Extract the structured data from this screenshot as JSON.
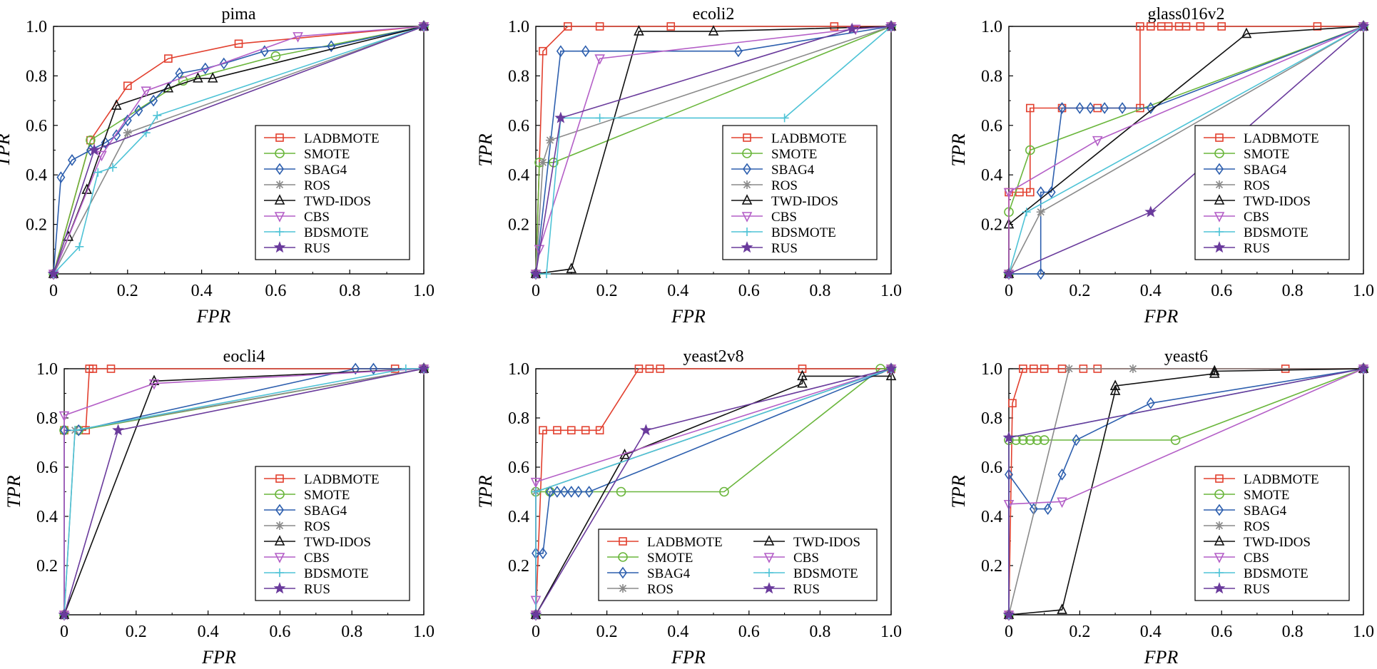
{
  "figure_caption_free": true,
  "colors": {
    "LADBMOTE": "#e2402f",
    "SMOTE": "#6ab63c",
    "SBAG4": "#2d5fae",
    "ROS": "#8a8a8a",
    "TWD-IDOS": "#111111",
    "CBS": "#b45fc7",
    "BDSMOTE": "#4ec3d6",
    "RUS": "#6a3b9c"
  },
  "chart_data": [
    {
      "type": "line",
      "title": "pima",
      "xlabel": "FPR",
      "ylabel": "TPR",
      "xlim": [
        0,
        1
      ],
      "ylim": [
        0,
        1
      ],
      "x_ticks": [
        "0",
        "0.2",
        "0.4",
        "0.6",
        "0.8",
        "1.0"
      ],
      "y_ticks": [
        "0.2",
        "0.4",
        "0.6",
        "0.8",
        "1.0"
      ],
      "legend_position": "bottom-right",
      "legend_columns": 1,
      "series": [
        {
          "name": "LADBMOTE",
          "marker": "square",
          "x": [
            0,
            0.1,
            0.2,
            0.31,
            0.5,
            1.0
          ],
          "y": [
            0,
            0.54,
            0.76,
            0.87,
            0.93,
            1.0
          ]
        },
        {
          "name": "SMOTE",
          "marker": "circle",
          "x": [
            0,
            0.1,
            0.35,
            0.6,
            1.0
          ],
          "y": [
            0,
            0.54,
            0.78,
            0.88,
            1.0
          ]
        },
        {
          "name": "SBAG4",
          "marker": "diamond",
          "x": [
            0,
            0.02,
            0.05,
            0.1,
            0.14,
            0.17,
            0.2,
            0.23,
            0.27,
            0.34,
            0.41,
            0.46,
            0.57,
            0.75,
            1.0
          ],
          "y": [
            0,
            0.39,
            0.46,
            0.5,
            0.53,
            0.56,
            0.62,
            0.66,
            0.7,
            0.81,
            0.83,
            0.85,
            0.9,
            0.92,
            1.0
          ]
        },
        {
          "name": "ROS",
          "marker": "asterisk",
          "x": [
            0,
            0.2,
            1.0
          ],
          "y": [
            0,
            0.57,
            1.0
          ]
        },
        {
          "name": "TWD-IDOS",
          "marker": "triangle-up",
          "x": [
            0,
            0.04,
            0.09,
            0.17,
            0.31,
            0.39,
            0.43,
            1.0
          ],
          "y": [
            0,
            0.15,
            0.34,
            0.68,
            0.75,
            0.79,
            0.79,
            1.0
          ]
        },
        {
          "name": "CBS",
          "marker": "triangle-down",
          "x": [
            0,
            0.13,
            0.25,
            0.66,
            1.0
          ],
          "y": [
            0,
            0.48,
            0.74,
            0.96,
            1.0
          ]
        },
        {
          "name": "BDSMOTE",
          "marker": "plus",
          "x": [
            0,
            0.07,
            0.12,
            0.16,
            0.25,
            0.28,
            1.0
          ],
          "y": [
            0,
            0.11,
            0.41,
            0.43,
            0.57,
            0.64,
            1.0
          ]
        },
        {
          "name": "RUS",
          "marker": "star",
          "x": [
            0,
            0.11,
            1.0
          ],
          "y": [
            0,
            0.5,
            1.0
          ]
        }
      ]
    },
    {
      "type": "line",
      "title": "ecoli2",
      "xlabel": "FPR",
      "ylabel": "TPR",
      "xlim": [
        0,
        1
      ],
      "ylim": [
        0,
        1
      ],
      "x_ticks": [
        "0",
        "0.2",
        "0.4",
        "0.6",
        "0.8",
        "1.0"
      ],
      "y_ticks": [
        "0.2",
        "0.4",
        "0.6",
        "0.8",
        "1.0"
      ],
      "legend_position": "bottom-right",
      "legend_columns": 1,
      "series": [
        {
          "name": "LADBMOTE",
          "marker": "square",
          "x": [
            0,
            0.02,
            0.09,
            0.18,
            0.38,
            0.84,
            1.0
          ],
          "y": [
            0,
            0.9,
            1.0,
            1.0,
            1.0,
            1.0,
            1.0
          ]
        },
        {
          "name": "SMOTE",
          "marker": "circle",
          "x": [
            0,
            0.01,
            0.05,
            1.0
          ],
          "y": [
            0,
            0.45,
            0.45,
            1.0
          ]
        },
        {
          "name": "SBAG4",
          "marker": "diamond",
          "x": [
            0,
            0.07,
            0.14,
            0.57,
            1.0
          ],
          "y": [
            0,
            0.9,
            0.9,
            0.9,
            1.0
          ]
        },
        {
          "name": "ROS",
          "marker": "asterisk",
          "x": [
            0,
            0.02,
            0.04,
            1.0
          ],
          "y": [
            0,
            0.45,
            0.54,
            1.0
          ]
        },
        {
          "name": "TWD-IDOS",
          "marker": "triangle-up",
          "x": [
            0,
            0.1,
            0.29,
            0.5,
            1.0
          ],
          "y": [
            0,
            0.02,
            0.98,
            0.98,
            1.0
          ]
        },
        {
          "name": "CBS",
          "marker": "triangle-down",
          "x": [
            0,
            0.01,
            0.18,
            0.9,
            1.0
          ],
          "y": [
            0,
            0.1,
            0.87,
            0.99,
            1.0
          ]
        },
        {
          "name": "BDSMOTE",
          "marker": "plus",
          "x": [
            0,
            0.03,
            0.07,
            0.18,
            0.7,
            1.0
          ],
          "y": [
            0,
            0.0,
            0.63,
            0.63,
            0.63,
            1.0
          ]
        },
        {
          "name": "RUS",
          "marker": "star",
          "x": [
            0,
            0.07,
            0.89,
            1.0
          ],
          "y": [
            0,
            0.63,
            0.99,
            1.0
          ]
        }
      ]
    },
    {
      "type": "line",
      "title": "glass016v2",
      "xlabel": "FPR",
      "ylabel": "TPR",
      "xlim": [
        0,
        1
      ],
      "ylim": [
        0,
        1
      ],
      "x_ticks": [
        "0",
        "0.2",
        "0.4",
        "0.6",
        "0.8",
        "1.0"
      ],
      "y_ticks": [
        "0.2",
        "0.4",
        "0.6",
        "0.8",
        "1.0"
      ],
      "legend_position": "bottom-right",
      "legend_columns": 1,
      "series": [
        {
          "name": "LADBMOTE",
          "marker": "square",
          "x": [
            0,
            0.0,
            0.03,
            0.06,
            0.06,
            0.15,
            0.25,
            0.37,
            0.37,
            0.4,
            0.43,
            0.45,
            0.48,
            0.5,
            0.54,
            0.6,
            0.87,
            1.0
          ],
          "y": [
            0,
            0.33,
            0.33,
            0.33,
            0.67,
            0.67,
            0.67,
            0.67,
            1.0,
            1.0,
            1.0,
            1.0,
            1.0,
            1.0,
            1.0,
            1.0,
            1.0,
            1.0
          ]
        },
        {
          "name": "SMOTE",
          "marker": "circle",
          "x": [
            0,
            0.0,
            0.06,
            1.0
          ],
          "y": [
            0,
            0.25,
            0.5,
            1.0
          ]
        },
        {
          "name": "SBAG4",
          "marker": "diamond",
          "x": [
            0,
            0.09,
            0.09,
            0.12,
            0.15,
            0.2,
            0.23,
            0.27,
            0.32,
            0.4,
            1.0
          ],
          "y": [
            0,
            0.0,
            0.33,
            0.33,
            0.67,
            0.67,
            0.67,
            0.67,
            0.67,
            0.67,
            1.0
          ]
        },
        {
          "name": "ROS",
          "marker": "asterisk",
          "x": [
            0,
            0.09,
            1.0
          ],
          "y": [
            0,
            0.25,
            1.0
          ]
        },
        {
          "name": "TWD-IDOS",
          "marker": "triangle-up",
          "x": [
            0,
            0.0,
            0.67,
            1.0
          ],
          "y": [
            0,
            0.2,
            0.97,
            1.0
          ]
        },
        {
          "name": "CBS",
          "marker": "triangle-down",
          "x": [
            0,
            0.0,
            0.25,
            1.0
          ],
          "y": [
            0,
            0.33,
            0.54,
            1.0
          ]
        },
        {
          "name": "BDSMOTE",
          "marker": "plus",
          "x": [
            0,
            0.05,
            1.0
          ],
          "y": [
            0,
            0.25,
            1.0
          ]
        },
        {
          "name": "RUS",
          "marker": "star",
          "x": [
            0,
            0.4,
            1.0
          ],
          "y": [
            0,
            0.25,
            1.0
          ]
        }
      ]
    },
    {
      "type": "line",
      "title": "eocli4",
      "xlabel": "FPR",
      "ylabel": "TPR",
      "xlim": [
        0,
        1
      ],
      "ylim": [
        0,
        1
      ],
      "x_ticks": [
        "0",
        "0.2",
        "0.4",
        "0.6",
        "0.8",
        "1.0"
      ],
      "y_ticks": [
        "0.2",
        "0.4",
        "0.6",
        "0.8",
        "1.0"
      ],
      "legend_position": "bottom-right",
      "legend_columns": 1,
      "series": [
        {
          "name": "LADBMOTE",
          "marker": "square",
          "x": [
            0,
            0.0,
            0.06,
            0.07,
            0.08,
            0.13,
            0.92,
            1.0
          ],
          "y": [
            0,
            0.75,
            0.75,
            1.0,
            1.0,
            1.0,
            1.0,
            1.0
          ]
        },
        {
          "name": "SMOTE",
          "marker": "circle",
          "x": [
            0,
            0.0,
            0.04,
            1.0
          ],
          "y": [
            0,
            0.75,
            0.75,
            1.0
          ]
        },
        {
          "name": "SBAG4",
          "marker": "diamond",
          "x": [
            0,
            0.0,
            0.04,
            0.81,
            0.86,
            1.0
          ],
          "y": [
            0,
            0.75,
            0.75,
            1.0,
            1.0,
            1.0
          ]
        },
        {
          "name": "ROS",
          "marker": "asterisk",
          "x": [
            0,
            0.03,
            1.0
          ],
          "y": [
            0,
            0.75,
            1.0
          ]
        },
        {
          "name": "TWD-IDOS",
          "marker": "triangle-up",
          "x": [
            0,
            0.25,
            1.0
          ],
          "y": [
            0,
            0.95,
            1.0
          ]
        },
        {
          "name": "CBS",
          "marker": "triangle-down",
          "x": [
            0,
            0.0,
            0.25,
            1.0
          ],
          "y": [
            0,
            0.81,
            0.94,
            1.0
          ]
        },
        {
          "name": "BDSMOTE",
          "marker": "plus",
          "x": [
            0,
            0.03,
            0.95,
            1.0
          ],
          "y": [
            0,
            0.75,
            1.0,
            1.0
          ]
        },
        {
          "name": "RUS",
          "marker": "star",
          "x": [
            0,
            0.15,
            1.0
          ],
          "y": [
            0,
            0.75,
            1.0
          ]
        }
      ]
    },
    {
      "type": "line",
      "title": "yeast2v8",
      "xlabel": "FPR",
      "ylabel": "TPR",
      "xlim": [
        0,
        1
      ],
      "ylim": [
        0,
        1
      ],
      "x_ticks": [
        "0",
        "0.2",
        "0.4",
        "0.6",
        "0.8",
        "1.0"
      ],
      "y_ticks": [
        "0.2",
        "0.4",
        "0.6",
        "0.8",
        "1.0"
      ],
      "legend_position": "bottom-right",
      "legend_columns": 2,
      "series": [
        {
          "name": "LADBMOTE",
          "marker": "square",
          "x": [
            0,
            0.02,
            0.06,
            0.1,
            0.14,
            0.18,
            0.29,
            0.32,
            0.35,
            0.75,
            1.0
          ],
          "y": [
            0,
            0.75,
            0.75,
            0.75,
            0.75,
            0.75,
            1.0,
            1.0,
            1.0,
            1.0,
            1.0
          ]
        },
        {
          "name": "SMOTE",
          "marker": "circle",
          "x": [
            0,
            0.0,
            0.04,
            0.24,
            0.53,
            0.97,
            1.0
          ],
          "y": [
            0,
            0.5,
            0.5,
            0.5,
            0.5,
            1.0,
            1.0
          ]
        },
        {
          "name": "SBAG4",
          "marker": "diamond",
          "x": [
            0,
            0.0,
            0.02,
            0.04,
            0.06,
            0.08,
            0.1,
            0.12,
            0.15,
            1.0
          ],
          "y": [
            0,
            0.25,
            0.25,
            0.5,
            0.5,
            0.5,
            0.5,
            0.5,
            0.5,
            1.0
          ]
        },
        {
          "name": "ROS",
          "marker": "asterisk",
          "x": [
            0,
            0.0,
            1.0
          ],
          "y": [
            0,
            0.5,
            1.0
          ]
        },
        {
          "name": "TWD-IDOS",
          "marker": "triangle-up",
          "x": [
            0,
            0.25,
            0.75,
            0.75,
            1.0
          ],
          "y": [
            0,
            0.65,
            0.94,
            0.97,
            0.97
          ]
        },
        {
          "name": "CBS",
          "marker": "triangle-down",
          "x": [
            0,
            0.0,
            0.0,
            1.0
          ],
          "y": [
            0,
            0.06,
            0.54,
            1.0
          ]
        },
        {
          "name": "BDSMOTE",
          "marker": "plus",
          "x": [
            0,
            0.0,
            1.0
          ],
          "y": [
            0,
            0.5,
            1.0
          ]
        },
        {
          "name": "RUS",
          "marker": "star",
          "x": [
            0,
            0.31,
            1.0
          ],
          "y": [
            0,
            0.75,
            1.0
          ]
        }
      ]
    },
    {
      "type": "line",
      "title": "yeast6",
      "xlabel": "FPR",
      "ylabel": "TPR",
      "xlim": [
        0,
        1
      ],
      "ylim": [
        0,
        1
      ],
      "x_ticks": [
        "0",
        "0.2",
        "0.4",
        "0.6",
        "0.8",
        "1.0"
      ],
      "y_ticks": [
        "0.2",
        "0.4",
        "0.6",
        "0.8",
        "1.0"
      ],
      "legend_position": "bottom-right",
      "legend_columns": 1,
      "series": [
        {
          "name": "LADBMOTE",
          "marker": "square",
          "x": [
            0,
            0.01,
            0.04,
            0.07,
            0.1,
            0.15,
            0.21,
            0.25,
            0.78,
            1.0
          ],
          "y": [
            0,
            0.86,
            1.0,
            1.0,
            1.0,
            1.0,
            1.0,
            1.0,
            1.0,
            1.0
          ]
        },
        {
          "name": "SMOTE",
          "marker": "circle",
          "x": [
            0,
            0.0,
            0.02,
            0.04,
            0.06,
            0.08,
            0.1,
            0.47,
            1.0
          ],
          "y": [
            0,
            0.71,
            0.71,
            0.71,
            0.71,
            0.71,
            0.71,
            0.71,
            1.0
          ]
        },
        {
          "name": "SBAG4",
          "marker": "diamond",
          "x": [
            0,
            0.0,
            0.07,
            0.11,
            0.15,
            0.19,
            0.4,
            1.0
          ],
          "y": [
            0,
            0.57,
            0.43,
            0.43,
            0.57,
            0.71,
            0.86,
            1.0
          ]
        },
        {
          "name": "ROS",
          "marker": "asterisk",
          "x": [
            0,
            0.17,
            0.35,
            1.0
          ],
          "y": [
            0,
            1.0,
            1.0,
            1.0
          ]
        },
        {
          "name": "TWD-IDOS",
          "marker": "triangle-up",
          "x": [
            0,
            0.15,
            0.3,
            0.3,
            0.58,
            0.58,
            1.0
          ],
          "y": [
            0,
            0.02,
            0.91,
            0.93,
            0.98,
            0.99,
            1.0
          ]
        },
        {
          "name": "CBS",
          "marker": "triangle-down",
          "x": [
            0,
            0.0,
            0.15,
            1.0
          ],
          "y": [
            0,
            0.45,
            0.46,
            1.0
          ]
        },
        {
          "name": "BDSMOTE",
          "marker": "plus",
          "x": [
            0,
            0.0,
            1.0
          ],
          "y": [
            0,
            0.72,
            1.0
          ]
        },
        {
          "name": "RUS",
          "marker": "star",
          "x": [
            0,
            0.0,
            1.0
          ],
          "y": [
            0,
            0.72,
            1.0
          ]
        }
      ]
    }
  ]
}
